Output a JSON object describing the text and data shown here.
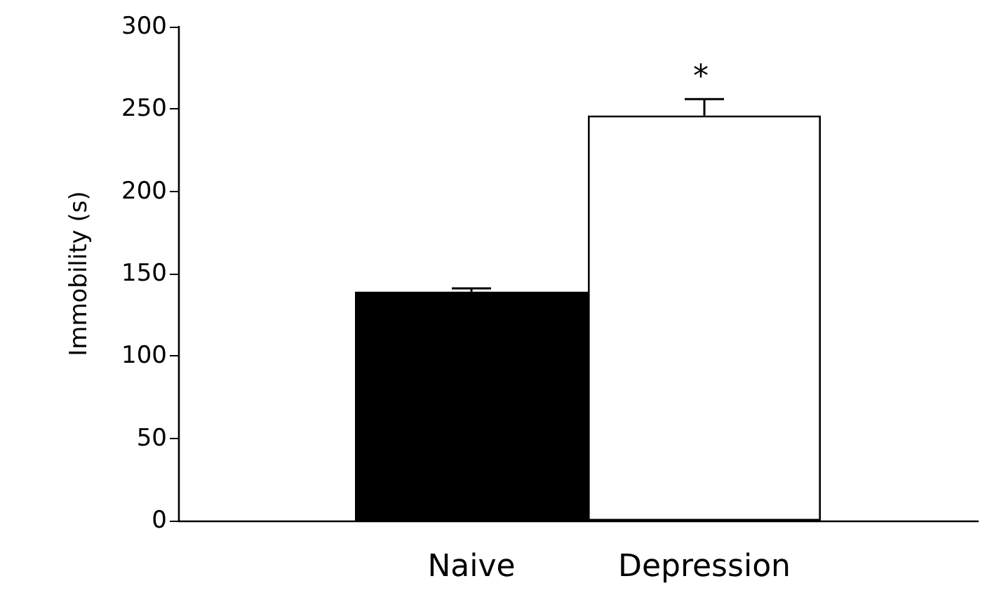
{
  "chart_data": {
    "type": "bar",
    "ylabel": "Immobility (s)",
    "categories": [
      "Naive",
      "Depression"
    ],
    "values": [
      139,
      246
    ],
    "colors": [
      "#000000",
      "#ffffff"
    ],
    "errors": [
      [
        139,
        141
      ],
      [
        246,
        256
      ]
    ],
    "ylim": [
      0,
      300
    ],
    "yticks": [
      0,
      50,
      100,
      150,
      200,
      250,
      300
    ],
    "annotations": [
      "*"
    ],
    "grid": false
  }
}
